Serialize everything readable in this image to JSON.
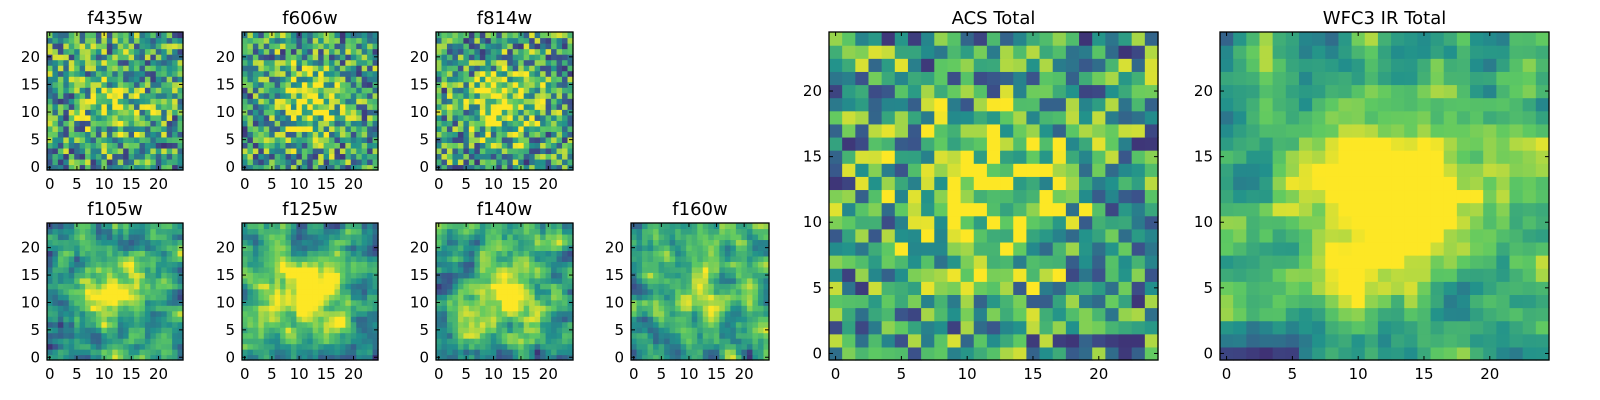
{
  "chart_data": [
    {
      "type": "heatmap",
      "title": "f435w",
      "size": 25,
      "xticks": [
        0,
        5,
        10,
        15,
        20
      ],
      "yticks": [
        0,
        5,
        10,
        15,
        20
      ],
      "seed": 11,
      "smooth": 0,
      "central": 0.25
    },
    {
      "type": "heatmap",
      "title": "f606w",
      "size": 25,
      "xticks": [
        0,
        5,
        10,
        15,
        20
      ],
      "yticks": [
        0,
        5,
        10,
        15,
        20
      ],
      "seed": 23,
      "smooth": 0,
      "central": 0.4
    },
    {
      "type": "heatmap",
      "title": "f814w",
      "size": 25,
      "xticks": [
        0,
        5,
        10,
        15,
        20
      ],
      "yticks": [
        0,
        5,
        10,
        15,
        20
      ],
      "seed": 37,
      "smooth": 0,
      "central": 0.4
    },
    {
      "type": "heatmap",
      "title": "f105w",
      "size": 25,
      "xticks": [
        0,
        5,
        10,
        15,
        20
      ],
      "yticks": [
        0,
        5,
        10,
        15,
        20
      ],
      "seed": 41,
      "smooth": 1,
      "central": 0.55
    },
    {
      "type": "heatmap",
      "title": "f125w",
      "size": 25,
      "xticks": [
        0,
        5,
        10,
        15,
        20
      ],
      "yticks": [
        0,
        5,
        10,
        15,
        20
      ],
      "seed": 53,
      "smooth": 1,
      "central": 0.55
    },
    {
      "type": "heatmap",
      "title": "f140w",
      "size": 25,
      "xticks": [
        0,
        5,
        10,
        15,
        20
      ],
      "yticks": [
        0,
        5,
        10,
        15,
        20
      ],
      "seed": 67,
      "smooth": 1,
      "central": 0.45
    },
    {
      "type": "heatmap",
      "title": "f160w",
      "size": 25,
      "xticks": [
        0,
        5,
        10,
        15,
        20
      ],
      "yticks": [
        0,
        5,
        10,
        15,
        20
      ],
      "seed": 79,
      "smooth": 1,
      "central": 0.3
    },
    {
      "type": "heatmap",
      "title": "ACS Total",
      "size": 25,
      "xticks": [
        0,
        5,
        10,
        15,
        20
      ],
      "yticks": [
        0,
        5,
        10,
        15,
        20
      ],
      "seed": 83,
      "smooth": 0,
      "central": 0.45
    },
    {
      "type": "heatmap",
      "title": "WFC3 IR Total",
      "size": 25,
      "xticks": [
        0,
        5,
        10,
        15,
        20
      ],
      "yticks": [
        0,
        5,
        10,
        15,
        20
      ],
      "seed": 97,
      "smooth": 1,
      "central": 0.6
    }
  ],
  "colormap": [
    "#440154",
    "#3b528b",
    "#21918c",
    "#5ec962",
    "#fde725"
  ]
}
